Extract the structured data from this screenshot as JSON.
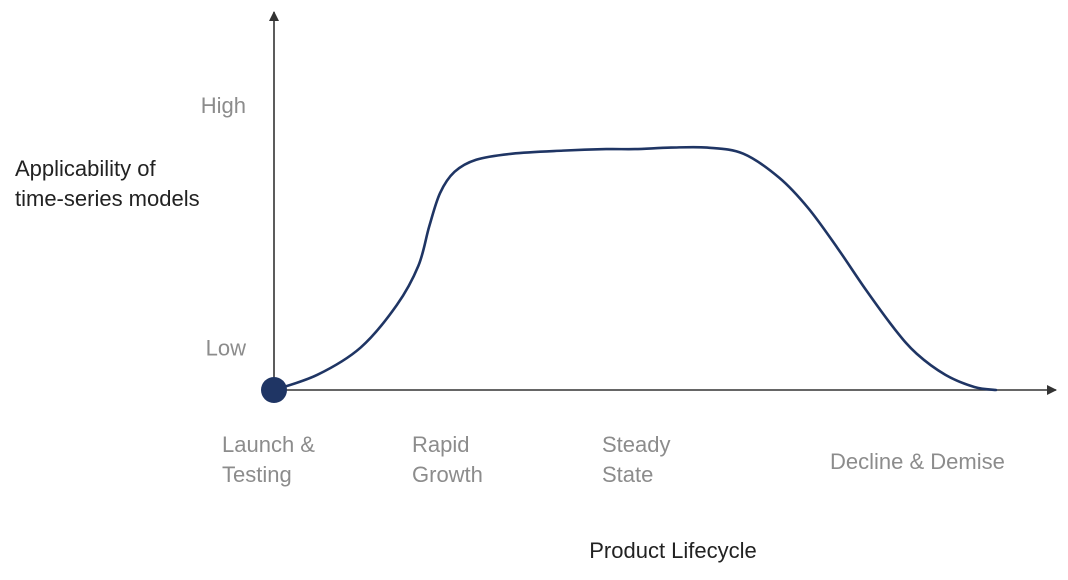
{
  "chart_data": {
    "type": "line",
    "title": "",
    "ylabel_lines": [
      "Applicability of",
      "time-series models"
    ],
    "xlabel": "Product Lifecycle",
    "y_ticks": [
      {
        "label": "Low",
        "value": 0.14
      },
      {
        "label": "High",
        "value": 0.94
      }
    ],
    "x_categories": [
      {
        "lines": [
          "Launch &",
          "Testing"
        ],
        "position": 0.0
      },
      {
        "lines": [
          "Rapid",
          "Growth"
        ],
        "position": 0.25
      },
      {
        "lines": [
          "Steady",
          "State"
        ],
        "position": 0.5
      },
      {
        "lines": [
          "Decline & Demise"
        ],
        "position": 0.8
      }
    ],
    "xlim": [
      0,
      1
    ],
    "ylim": [
      0,
      1
    ],
    "grid": false,
    "series": [
      {
        "x": [
          0.0,
          0.06,
          0.12,
          0.17,
          0.2,
          0.215,
          0.23,
          0.25,
          0.28,
          0.33,
          0.4,
          0.46,
          0.5,
          0.55,
          0.6,
          0.65,
          0.7,
          0.74,
          0.78,
          0.82,
          0.86,
          0.89,
          0.93,
          0.97,
          1.0
        ],
        "y": [
          0.0,
          0.05,
          0.14,
          0.28,
          0.41,
          0.54,
          0.65,
          0.72,
          0.76,
          0.78,
          0.79,
          0.795,
          0.795,
          0.8,
          0.8,
          0.78,
          0.7,
          0.6,
          0.47,
          0.33,
          0.2,
          0.12,
          0.05,
          0.01,
          0.0
        ]
      }
    ],
    "origin_marker": true,
    "colors": {
      "line": "#1f3564",
      "marker": "#1f3564",
      "axis": "#333333",
      "tick_text": "#8c8c8c",
      "title_text": "#222222"
    }
  }
}
